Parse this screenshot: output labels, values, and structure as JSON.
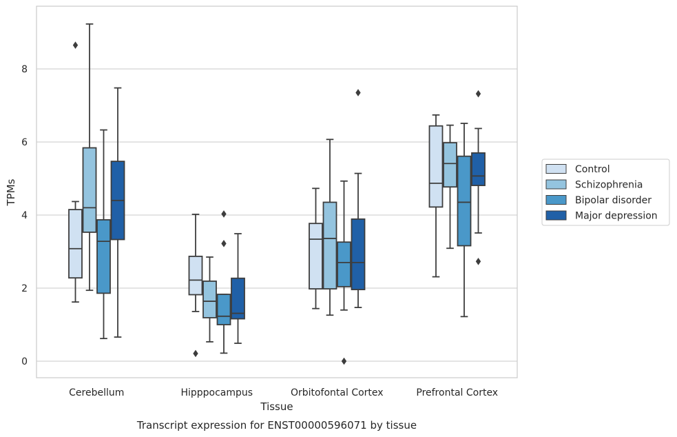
{
  "chart_data": {
    "type": "box",
    "caption": "Transcript expression for ENST00000596071 by tissue",
    "xlabel": "Tissue",
    "ylabel": "TPMs",
    "ylim": [
      -0.45,
      9.7
    ],
    "yticks": [
      0,
      2,
      4,
      6,
      8
    ],
    "grid": "horizontal",
    "legend_position": "right",
    "categories": [
      "Cerebellum",
      "Hipppocampus",
      "Orbitofontal Cortex",
      "Prefrontal Cortex"
    ],
    "series": [
      {
        "name": "Control",
        "color": "#d0e1f2",
        "boxes": [
          {
            "whisker_low": 1.62,
            "q1": 2.28,
            "median": 3.08,
            "q3": 4.15,
            "whisker_high": 4.37,
            "outliers": [
              8.65
            ]
          },
          {
            "whisker_low": 1.36,
            "q1": 1.82,
            "median": 2.22,
            "q3": 2.87,
            "whisker_high": 4.02,
            "outliers": [
              0.21
            ]
          },
          {
            "whisker_low": 1.44,
            "q1": 1.98,
            "median": 3.34,
            "q3": 3.77,
            "whisker_high": 4.73,
            "outliers": []
          },
          {
            "whisker_low": 2.31,
            "q1": 4.22,
            "median": 4.87,
            "q3": 6.44,
            "whisker_high": 6.74,
            "outliers": []
          }
        ]
      },
      {
        "name": "Schizophrenia",
        "color": "#94c4df",
        "boxes": [
          {
            "whisker_low": 1.94,
            "q1": 3.53,
            "median": 4.2,
            "q3": 5.84,
            "whisker_high": 9.23,
            "outliers": []
          },
          {
            "whisker_low": 0.53,
            "q1": 1.19,
            "median": 1.64,
            "q3": 2.19,
            "whisker_high": 2.85,
            "outliers": []
          },
          {
            "whisker_low": 1.26,
            "q1": 1.98,
            "median": 3.36,
            "q3": 4.35,
            "whisker_high": 6.07,
            "outliers": []
          },
          {
            "whisker_low": 3.09,
            "q1": 4.77,
            "median": 5.41,
            "q3": 5.98,
            "whisker_high": 6.46,
            "outliers": []
          }
        ]
      },
      {
        "name": "Bipolar disorder",
        "color": "#4a98c9",
        "boxes": [
          {
            "whisker_low": 0.62,
            "q1": 1.86,
            "median": 3.28,
            "q3": 3.87,
            "whisker_high": 6.33,
            "outliers": []
          },
          {
            "whisker_low": 0.22,
            "q1": 1.0,
            "median": 1.23,
            "q3": 1.83,
            "whisker_high": 1.83,
            "outliers": [
              3.22,
              4.03
            ]
          },
          {
            "whisker_low": 1.4,
            "q1": 2.04,
            "median": 2.7,
            "q3": 3.26,
            "whisker_high": 4.93,
            "outliers": [
              0.0
            ]
          },
          {
            "whisker_low": 1.22,
            "q1": 3.16,
            "median": 4.35,
            "q3": 5.61,
            "whisker_high": 6.51,
            "outliers": []
          }
        ]
      },
      {
        "name": "Major depression",
        "color": "#2060a7",
        "boxes": [
          {
            "whisker_low": 0.66,
            "q1": 3.33,
            "median": 4.4,
            "q3": 5.47,
            "whisker_high": 7.48,
            "outliers": []
          },
          {
            "whisker_low": 0.49,
            "q1": 1.16,
            "median": 1.31,
            "q3": 2.27,
            "whisker_high": 3.49,
            "outliers": []
          },
          {
            "whisker_low": 1.47,
            "q1": 1.96,
            "median": 2.7,
            "q3": 3.89,
            "whisker_high": 5.14,
            "outliers": [
              7.35
            ]
          },
          {
            "whisker_low": 3.51,
            "q1": 4.81,
            "median": 5.07,
            "q3": 5.7,
            "whisker_high": 6.37,
            "outliers": [
              2.73,
              7.32
            ]
          }
        ]
      }
    ]
  }
}
